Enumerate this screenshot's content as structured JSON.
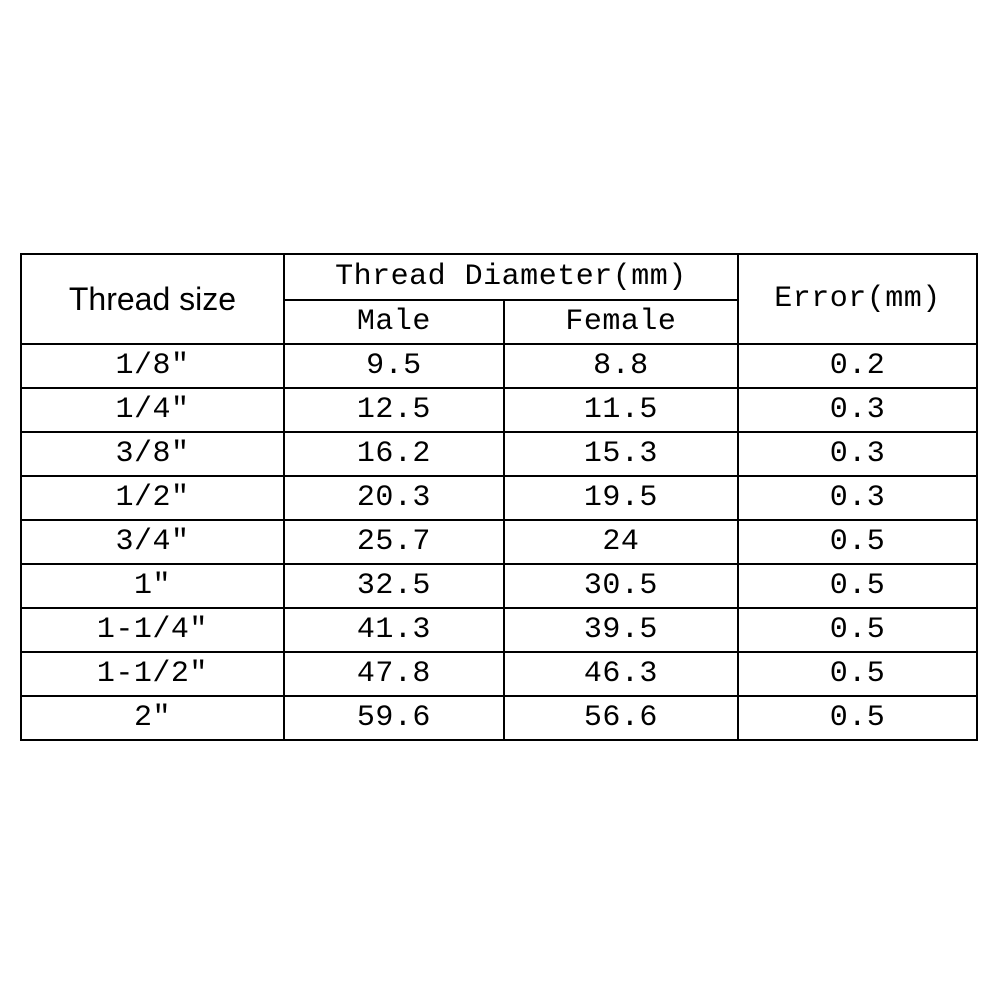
{
  "table": {
    "type": "table",
    "background_color": "#ffffff",
    "border_color": "#000000",
    "border_width": 2,
    "font_mono": "SimSun/Courier-like monospace",
    "font_sans": "Arial-like sans-serif",
    "font_size_header_sans": 32,
    "font_size_mono": 30,
    "col_widths_pct": [
      27.5,
      23,
      24.5,
      25
    ],
    "headers": {
      "thread_size": "Thread size",
      "thread_diameter": "Thread Diameter(mm)",
      "male": "Male",
      "female": "Female",
      "error": "Error(mm)"
    },
    "rows": [
      {
        "size": "1/8″",
        "male": "9.5",
        "female": "8.8",
        "error": "0.2"
      },
      {
        "size": "1/4″",
        "male": "12.5",
        "female": "11.5",
        "error": "0.3"
      },
      {
        "size": "3/8″",
        "male": "16.2",
        "female": "15.3",
        "error": "0.3"
      },
      {
        "size": "1/2″",
        "male": "20.3",
        "female": "19.5",
        "error": "0.3"
      },
      {
        "size": "3/4″",
        "male": "25.7",
        "female": "24",
        "error": "0.5"
      },
      {
        "size": "1″",
        "male": "32.5",
        "female": "30.5",
        "error": "0.5"
      },
      {
        "size": "1-1/4″",
        "male": "41.3",
        "female": "39.5",
        "error": "0.5"
      },
      {
        "size": "1-1/2″",
        "male": "47.8",
        "female": "46.3",
        "error": "0.5"
      },
      {
        "size": "2″",
        "male": "59.6",
        "female": "56.6",
        "error": "0.5"
      }
    ]
  }
}
